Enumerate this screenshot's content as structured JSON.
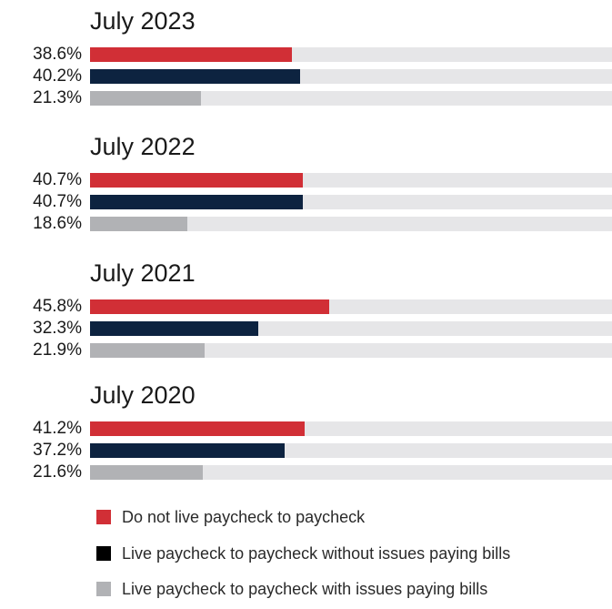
{
  "chart_data": {
    "type": "bar",
    "orientation": "horizontal",
    "xlim": [
      0,
      100
    ],
    "unit": "%",
    "series": [
      {
        "name": "Do not live paycheck to paycheck",
        "color": "#d12f36"
      },
      {
        "name": "Live paycheck to paycheck without issues paying bills",
        "color": "#0d2340"
      },
      {
        "name": "Live paycheck to paycheck with issues paying bills",
        "color": "#b1b2b5"
      }
    ],
    "groups": [
      {
        "title": "July 2023",
        "values": [
          38.6,
          40.2,
          21.3
        ],
        "labels": [
          "38.6%",
          "40.2%",
          "21.3%"
        ]
      },
      {
        "title": "July 2022",
        "values": [
          40.7,
          40.7,
          18.6
        ],
        "labels": [
          "40.7%",
          "40.7%",
          "18.6%"
        ]
      },
      {
        "title": "July 2021",
        "values": [
          45.8,
          32.3,
          21.9
        ],
        "labels": [
          "45.8%",
          "32.3%",
          "21.9%"
        ]
      },
      {
        "title": "July 2020",
        "values": [
          41.2,
          37.2,
          21.6
        ],
        "labels": [
          "41.2%",
          "37.2%",
          "21.6%"
        ]
      }
    ],
    "legend": {
      "position": "bottom"
    },
    "track_color": "#e6e6e8"
  }
}
